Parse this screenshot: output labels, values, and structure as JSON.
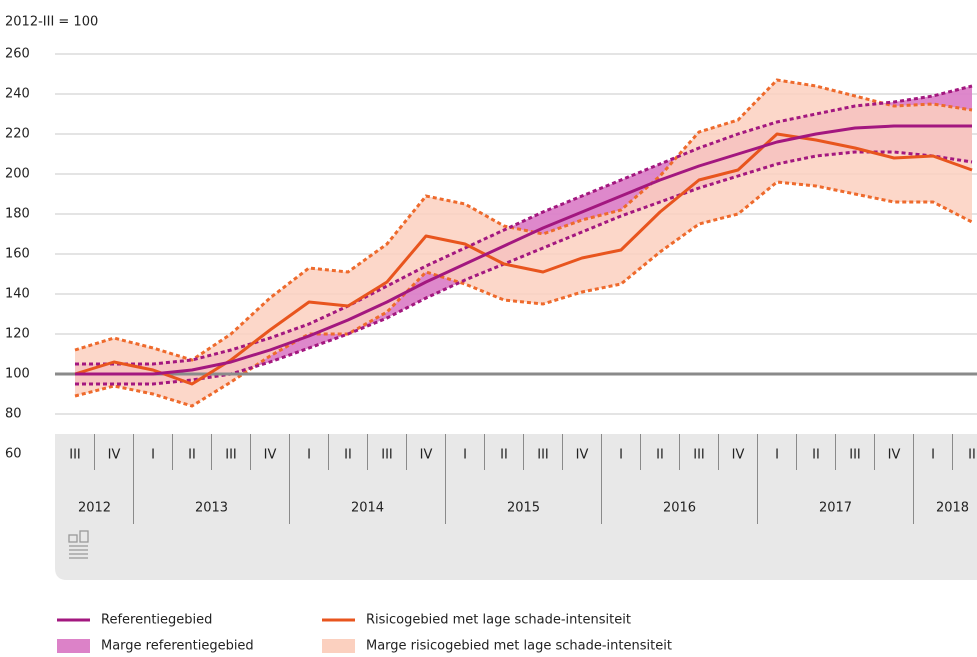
{
  "chart_data": {
    "type": "line",
    "ylabel": "2012-III = 100",
    "categories": [
      "III",
      "IV",
      "I",
      "II",
      "III",
      "IV",
      "I",
      "II",
      "III",
      "IV",
      "I",
      "II",
      "III",
      "IV",
      "I",
      "II",
      "III",
      "IV",
      "I",
      "II",
      "III",
      "IV",
      "I",
      "II"
    ],
    "years": [
      "2012",
      "2013",
      "2014",
      "2015",
      "2016",
      "2017",
      "2018"
    ],
    "ylim": [
      60,
      260
    ],
    "yticks": [
      60,
      80,
      100,
      120,
      140,
      160,
      180,
      200,
      220,
      240,
      260
    ],
    "grid": true,
    "reference_line": 100,
    "series": [
      {
        "name": "Referentiegebied",
        "color": "#a3177f",
        "values": [
          100,
          100,
          100,
          102,
          106,
          112,
          119,
          127,
          136,
          146,
          155,
          164,
          173,
          181,
          189,
          197,
          204,
          210,
          216,
          220,
          223,
          224,
          224,
          224
        ]
      },
      {
        "name": "Risicogebied met lage schade-intensiteit",
        "color": "#e8551e",
        "values": [
          100,
          106,
          102,
          95,
          107,
          122,
          136,
          134,
          146,
          169,
          165,
          155,
          151,
          158,
          162,
          181,
          197,
          202,
          220,
          217,
          213,
          208,
          209,
          202
        ]
      }
    ],
    "bands": [
      {
        "name": "Marge referentiegebied",
        "color": "#dc82c8",
        "edge_color": "#a3177f",
        "lower": [
          95,
          95,
          95,
          97,
          100,
          106,
          113,
          120,
          128,
          138,
          147,
          155,
          163,
          171,
          179,
          186,
          193,
          199,
          205,
          209,
          211,
          211,
          209,
          206
        ],
        "upper": [
          105,
          105,
          105,
          107,
          112,
          118,
          125,
          134,
          144,
          154,
          163,
          172,
          181,
          189,
          197,
          205,
          213,
          220,
          226,
          230,
          234,
          236,
          239,
          244
        ]
      },
      {
        "name": "Marge risicogebied met lage schade-intensiteit",
        "color": "#fbd0bf",
        "edge_color": "#ee6a2c",
        "lower": [
          89,
          94,
          90,
          84,
          96,
          109,
          120,
          120,
          131,
          151,
          145,
          137,
          135,
          141,
          145,
          161,
          175,
          180,
          196,
          194,
          190,
          186,
          186,
          176
        ],
        "upper": [
          112,
          118,
          113,
          107,
          120,
          138,
          153,
          151,
          165,
          189,
          185,
          174,
          170,
          177,
          182,
          199,
          221,
          227,
          247,
          244,
          239,
          234,
          235,
          232
        ]
      }
    ]
  }
}
